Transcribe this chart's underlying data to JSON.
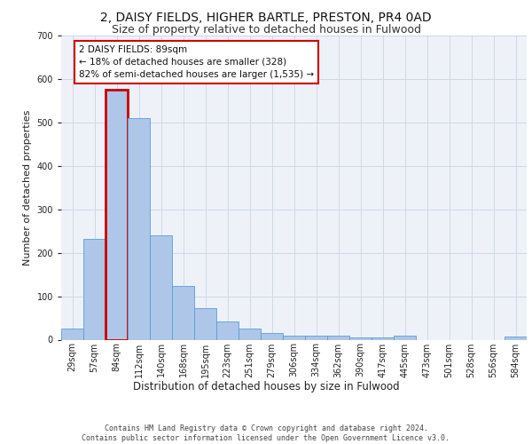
{
  "title_line1": "2, DAISY FIELDS, HIGHER BARTLE, PRESTON, PR4 0AD",
  "title_line2": "Size of property relative to detached houses in Fulwood",
  "xlabel": "Distribution of detached houses by size in Fulwood",
  "ylabel": "Number of detached properties",
  "categories": [
    "29sqm",
    "57sqm",
    "84sqm",
    "112sqm",
    "140sqm",
    "168sqm",
    "195sqm",
    "223sqm",
    "251sqm",
    "279sqm",
    "306sqm",
    "334sqm",
    "362sqm",
    "390sqm",
    "417sqm",
    "445sqm",
    "473sqm",
    "501sqm",
    "528sqm",
    "556sqm",
    "584sqm"
  ],
  "values": [
    25,
    232,
    575,
    510,
    240,
    123,
    72,
    42,
    25,
    15,
    10,
    10,
    10,
    5,
    5,
    10,
    0,
    0,
    0,
    0,
    7
  ],
  "bar_color": "#aec6e8",
  "bar_edge_color": "#5a9fd4",
  "highlight_bar_index": 2,
  "highlight_bar_edge_color": "#cc0000",
  "annotation_box_text": "2 DAISY FIELDS: 89sqm\n← 18% of detached houses are smaller (328)\n82% of semi-detached houses are larger (1,535) →",
  "annotation_fontsize": 7.5,
  "box_edge_color": "#cc0000",
  "ylim": [
    0,
    700
  ],
  "yticks": [
    0,
    100,
    200,
    300,
    400,
    500,
    600,
    700
  ],
  "grid_color": "#d0d8e8",
  "background_color": "#eef2f8",
  "footer_text": "Contains HM Land Registry data © Crown copyright and database right 2024.\nContains public sector information licensed under the Open Government Licence v3.0.",
  "title_fontsize": 10,
  "subtitle_fontsize": 9,
  "xlabel_fontsize": 8.5,
  "ylabel_fontsize": 8,
  "tick_fontsize": 7
}
